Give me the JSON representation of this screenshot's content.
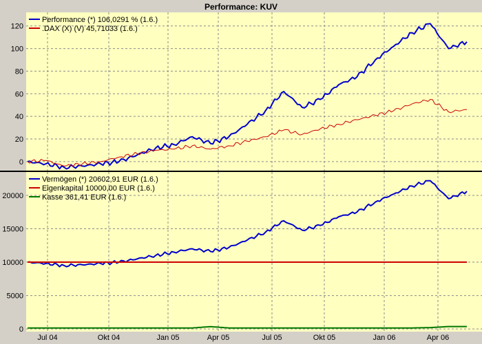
{
  "title": "Performance: KUV",
  "colors": {
    "window_bg": "#d4d0c8",
    "plot_bg": "#ffffc0",
    "grid": "#8a8a8a",
    "blue": "#0000cc",
    "red": "#cc0000",
    "green": "#007700"
  },
  "x_ticks": [
    "Jul 04",
    "Okt 04",
    "Jan 05",
    "Apr 05",
    "Jul 05",
    "Okt 05",
    "Jan 06",
    "Apr 06"
  ],
  "chart_data": [
    {
      "type": "line",
      "grid": true,
      "legend": "top-left",
      "ylim": [
        -8,
        132
      ],
      "yticks": [
        0,
        20,
        40,
        60,
        80,
        100,
        120
      ],
      "x": [
        "Jun 04",
        "Jul 04",
        "Aug 04",
        "Sep 04",
        "Okt 04",
        "Nov 04",
        "Dez 04",
        "Jan 05",
        "Feb 05",
        "Mär 05",
        "Apr 05",
        "Mai 05",
        "Jun 05",
        "Jul 05",
        "Aug 05",
        "Sep 05",
        "Okt 05",
        "Nov 05",
        "Dez 05",
        "Jan 06",
        "Feb 06",
        "Mär 06",
        "Apr 06",
        "Mai 06",
        "Jun 06"
      ],
      "series": [
        {
          "name": "Performance (*) 106,0291 % (1.6.)",
          "color": "#0000cc",
          "values": [
            0,
            -2,
            -5,
            -4,
            -2,
            0,
            6,
            12,
            15,
            22,
            16,
            22,
            33,
            45,
            62,
            48,
            55,
            68,
            75,
            90,
            102,
            114,
            122,
            100,
            106
          ]
        },
        {
          "name": ".DAX (X) (V) 45,71033 (1.6.)",
          "color": "#cc0000",
          "values": [
            0,
            1,
            -4,
            -2,
            0,
            4,
            7,
            10,
            11,
            14,
            11,
            14,
            18,
            22,
            28,
            24,
            29,
            33,
            37,
            41,
            45,
            51,
            55,
            44,
            46
          ]
        }
      ]
    },
    {
      "type": "line",
      "grid": true,
      "legend": "top-left",
      "ylim": [
        -400,
        23500
      ],
      "yticks": [
        0,
        5000,
        10000,
        15000,
        20000
      ],
      "x": [
        "Jun 04",
        "Jul 04",
        "Aug 04",
        "Sep 04",
        "Okt 04",
        "Nov 04",
        "Dez 04",
        "Jan 05",
        "Feb 05",
        "Mär 05",
        "Apr 05",
        "Mai 05",
        "Jun 05",
        "Jul 05",
        "Aug 05",
        "Sep 05",
        "Okt 05",
        "Nov 05",
        "Dez 05",
        "Jan 06",
        "Feb 06",
        "Mär 06",
        "Apr 06",
        "Mai 06",
        "Jun 06"
      ],
      "series": [
        {
          "name": "Vermögen (*) 20602,91 EUR (1.6.)",
          "color": "#0000cc",
          "values": [
            10000,
            9800,
            9500,
            9600,
            9800,
            10000,
            10500,
            11000,
            11500,
            12000,
            11600,
            12200,
            13300,
            14500,
            16200,
            14800,
            15500,
            16800,
            17500,
            19000,
            20200,
            21400,
            22200,
            19500,
            20603
          ]
        },
        {
          "name": "Eigenkapital 10000,00 EUR (1.6.)",
          "color": "#cc0000",
          "values": [
            10000,
            10000,
            10000,
            10000,
            10000,
            10000,
            10000,
            10000,
            10000,
            10000,
            10000,
            10000,
            10000,
            10000,
            10000,
            10000,
            10000,
            10000,
            10000,
            10000,
            10000,
            10000,
            10000,
            10000,
            10000
          ]
        },
        {
          "name": "Kasse 361,41 EUR (1.6.)",
          "color": "#007700",
          "values": [
            150,
            150,
            150,
            150,
            150,
            150,
            150,
            150,
            150,
            150,
            350,
            150,
            150,
            150,
            150,
            150,
            150,
            150,
            150,
            150,
            150,
            150,
            200,
            360,
            361
          ]
        }
      ]
    }
  ]
}
